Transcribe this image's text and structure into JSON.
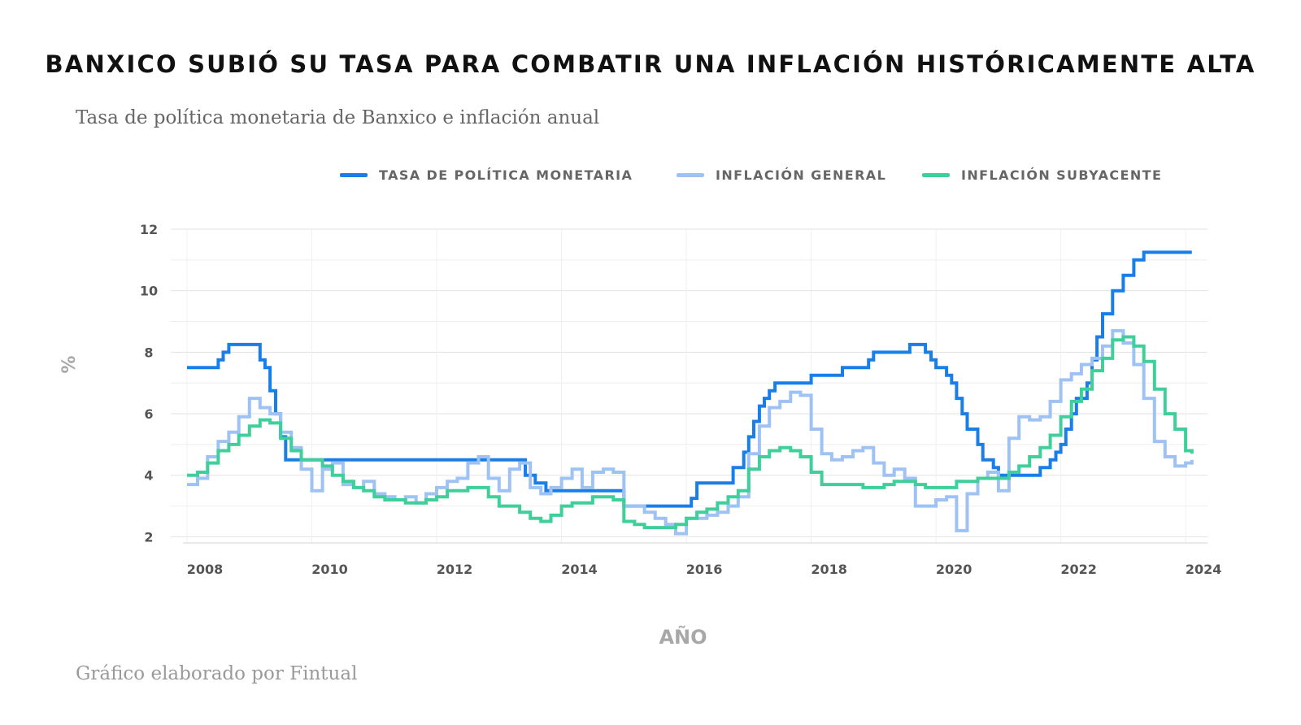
{
  "title": "BANXICO SUBIÓ SU TASA PARA COMBATIR UNA INFLACIÓN HISTÓRICAMENTE ALTA",
  "subtitle": "Tasa de política monetaria de Banxico e inflación anual",
  "footer": "Gráfico elaborado por Fintual",
  "chart_data": {
    "type": "line",
    "xlabel": "AÑO",
    "ylabel": "%",
    "xlim": [
      2008,
      2024.35
    ],
    "ylim": [
      1.8,
      12
    ],
    "x_ticks": [
      2008,
      2010,
      2012,
      2014,
      2016,
      2018,
      2020,
      2022,
      2024
    ],
    "y_ticks": [
      2,
      4,
      6,
      8,
      10,
      12
    ],
    "grid": true,
    "legend_position": "top",
    "series": [
      {
        "name": "TASA DE POLÍTICA MONETARIA",
        "color": "#1a7ee8",
        "x": [
          2008.0,
          2008.42,
          2008.5,
          2008.58,
          2008.67,
          2009.08,
          2009.17,
          2009.25,
          2009.33,
          2009.42,
          2009.5,
          2009.58,
          2010.0,
          2013.17,
          2013.42,
          2013.58,
          2013.75,
          2014.42,
          2015.0,
          2015.92,
          2016.08,
          2016.17,
          2016.5,
          2016.75,
          2016.92,
          2017.0,
          2017.08,
          2017.17,
          2017.25,
          2017.33,
          2017.42,
          2017.92,
          2018.0,
          2018.5,
          2018.92,
          2019.0,
          2019.58,
          2019.75,
          2019.83,
          2019.92,
          2020.0,
          2020.17,
          2020.25,
          2020.33,
          2020.42,
          2020.5,
          2020.67,
          2020.75,
          2020.92,
          2021.0,
          2021.08,
          2021.17,
          2021.42,
          2021.5,
          2021.67,
          2021.83,
          2021.92,
          2022.0,
          2022.08,
          2022.17,
          2022.25,
          2022.42,
          2022.5,
          2022.58,
          2022.67,
          2022.83,
          2023.0,
          2023.08,
          2023.17,
          2023.33,
          2024.1
        ],
        "values": [
          7.5,
          7.5,
          7.75,
          8.0,
          8.25,
          8.25,
          7.75,
          7.5,
          6.75,
          6.0,
          5.25,
          4.5,
          4.5,
          4.5,
          4.0,
          3.75,
          3.5,
          3.5,
          3.0,
          3.0,
          3.25,
          3.75,
          3.75,
          4.25,
          4.75,
          5.25,
          5.75,
          6.25,
          6.5,
          6.75,
          7.0,
          7.0,
          7.25,
          7.5,
          7.75,
          8.0,
          8.25,
          8.25,
          8.0,
          7.75,
          7.5,
          7.25,
          7.0,
          6.5,
          6.0,
          5.5,
          5.0,
          4.5,
          4.25,
          4.0,
          4.0,
          4.0,
          4.0,
          4.0,
          4.25,
          4.5,
          4.75,
          5.0,
          5.5,
          6.0,
          6.5,
          7.0,
          7.75,
          8.5,
          9.25,
          10.0,
          10.5,
          10.5,
          11.0,
          11.25,
          11.25
        ]
      },
      {
        "name": "INFLACIÓN GENERAL",
        "color": "#9fc2f4",
        "x": [
          2008.0,
          2008.17,
          2008.33,
          2008.5,
          2008.67,
          2008.83,
          2009.0,
          2009.17,
          2009.33,
          2009.5,
          2009.67,
          2009.83,
          2010.0,
          2010.17,
          2010.33,
          2010.5,
          2010.67,
          2010.83,
          2011.0,
          2011.17,
          2011.33,
          2011.5,
          2011.67,
          2011.83,
          2012.0,
          2012.17,
          2012.33,
          2012.5,
          2012.67,
          2012.83,
          2013.0,
          2013.17,
          2013.33,
          2013.5,
          2013.67,
          2013.83,
          2014.0,
          2014.17,
          2014.33,
          2014.5,
          2014.67,
          2014.83,
          2015.0,
          2015.17,
          2015.33,
          2015.5,
          2015.67,
          2015.83,
          2016.0,
          2016.17,
          2016.33,
          2016.5,
          2016.67,
          2016.83,
          2017.0,
          2017.17,
          2017.33,
          2017.5,
          2017.67,
          2017.83,
          2018.0,
          2018.17,
          2018.33,
          2018.5,
          2018.67,
          2018.83,
          2019.0,
          2019.17,
          2019.33,
          2019.5,
          2019.67,
          2019.83,
          2020.0,
          2020.17,
          2020.33,
          2020.5,
          2020.67,
          2020.83,
          2021.0,
          2021.17,
          2021.33,
          2021.5,
          2021.67,
          2021.83,
          2022.0,
          2022.17,
          2022.33,
          2022.5,
          2022.67,
          2022.83,
          2023.0,
          2023.17,
          2023.33,
          2023.5,
          2023.67,
          2023.83,
          2024.0,
          2024.1
        ],
        "values": [
          3.7,
          3.9,
          4.6,
          5.1,
          5.4,
          5.9,
          6.5,
          6.2,
          6.0,
          5.4,
          4.9,
          4.2,
          3.5,
          4.2,
          4.4,
          3.7,
          3.6,
          3.8,
          3.4,
          3.3,
          3.2,
          3.3,
          3.1,
          3.4,
          3.6,
          3.8,
          3.9,
          4.4,
          4.6,
          3.9,
          3.5,
          4.2,
          4.4,
          3.6,
          3.4,
          3.6,
          3.9,
          4.2,
          3.6,
          4.1,
          4.2,
          4.1,
          3.0,
          3.0,
          2.8,
          2.6,
          2.4,
          2.1,
          2.6,
          2.6,
          2.7,
          2.8,
          3.0,
          3.3,
          4.7,
          5.6,
          6.2,
          6.4,
          6.7,
          6.6,
          5.5,
          4.7,
          4.5,
          4.6,
          4.8,
          4.9,
          4.4,
          4.0,
          4.2,
          3.9,
          3.0,
          3.0,
          3.2,
          3.3,
          2.2,
          3.4,
          3.9,
          4.1,
          3.5,
          5.2,
          5.9,
          5.8,
          5.9,
          6.4,
          7.1,
          7.3,
          7.6,
          7.8,
          8.2,
          8.7,
          8.3,
          7.6,
          6.5,
          5.1,
          4.6,
          4.3,
          4.4,
          4.5
        ]
      },
      {
        "name": "INFLACIÓN SUBYACENTE",
        "color": "#3ecf9a",
        "x": [
          2008.0,
          2008.17,
          2008.33,
          2008.5,
          2008.67,
          2008.83,
          2009.0,
          2009.17,
          2009.33,
          2009.5,
          2009.67,
          2009.83,
          2010.0,
          2010.17,
          2010.33,
          2010.5,
          2010.67,
          2010.83,
          2011.0,
          2011.17,
          2011.33,
          2011.5,
          2011.67,
          2011.83,
          2012.0,
          2012.17,
          2012.33,
          2012.5,
          2012.67,
          2012.83,
          2013.0,
          2013.17,
          2013.33,
          2013.5,
          2013.67,
          2013.83,
          2014.0,
          2014.17,
          2014.33,
          2014.5,
          2014.67,
          2014.83,
          2015.0,
          2015.17,
          2015.33,
          2015.5,
          2015.67,
          2015.83,
          2016.0,
          2016.17,
          2016.33,
          2016.5,
          2016.67,
          2016.83,
          2017.0,
          2017.17,
          2017.33,
          2017.5,
          2017.67,
          2017.83,
          2018.0,
          2018.17,
          2018.33,
          2018.5,
          2018.67,
          2018.83,
          2019.0,
          2019.17,
          2019.33,
          2019.5,
          2019.67,
          2019.83,
          2020.0,
          2020.17,
          2020.33,
          2020.5,
          2020.67,
          2020.83,
          2021.0,
          2021.17,
          2021.33,
          2021.5,
          2021.67,
          2021.83,
          2022.0,
          2022.17,
          2022.33,
          2022.5,
          2022.67,
          2022.83,
          2023.0,
          2023.17,
          2023.33,
          2023.5,
          2023.67,
          2023.83,
          2024.0,
          2024.1
        ],
        "values": [
          4.0,
          4.1,
          4.4,
          4.8,
          5.0,
          5.3,
          5.6,
          5.8,
          5.7,
          5.2,
          4.8,
          4.5,
          4.5,
          4.3,
          4.0,
          3.8,
          3.6,
          3.5,
          3.3,
          3.2,
          3.2,
          3.1,
          3.1,
          3.2,
          3.3,
          3.5,
          3.5,
          3.6,
          3.6,
          3.3,
          3.0,
          3.0,
          2.8,
          2.6,
          2.5,
          2.7,
          3.0,
          3.1,
          3.1,
          3.3,
          3.3,
          3.2,
          2.5,
          2.4,
          2.3,
          2.3,
          2.3,
          2.4,
          2.6,
          2.8,
          2.9,
          3.1,
          3.3,
          3.5,
          4.2,
          4.6,
          4.8,
          4.9,
          4.8,
          4.6,
          4.1,
          3.7,
          3.7,
          3.7,
          3.7,
          3.6,
          3.6,
          3.7,
          3.8,
          3.8,
          3.7,
          3.6,
          3.6,
          3.6,
          3.8,
          3.8,
          3.9,
          3.9,
          3.9,
          4.1,
          4.3,
          4.6,
          4.9,
          5.3,
          5.9,
          6.4,
          6.8,
          7.4,
          7.8,
          8.4,
          8.5,
          8.2,
          7.7,
          6.8,
          6.0,
          5.5,
          4.8,
          4.7
        ]
      }
    ]
  }
}
